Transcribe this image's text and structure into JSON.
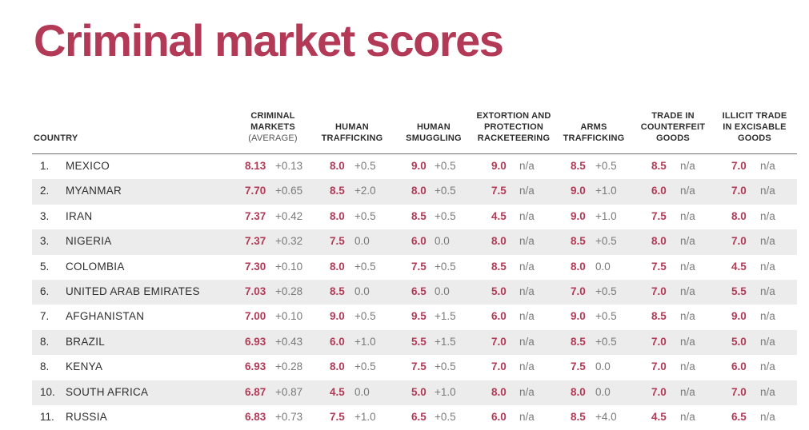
{
  "title": "Criminal market scores",
  "headers": {
    "country": "COUNTRY",
    "criminal_markets": "CRIMINAL MARKETS",
    "criminal_markets_sub": "(AVERAGE)",
    "human_trafficking": "HUMAN TRAFFICKING",
    "human_smuggling": "HUMAN SMUGGLING",
    "extortion": "EXTORTION AND PROTECTION RACKETEERING",
    "arms_trafficking": "ARMS TRAFFICKING",
    "counterfeit": "TRADE IN COUNTERFEIT GOODS",
    "excisable": "ILLICIT TRADE IN EXCISABLE GOODS"
  },
  "rows": [
    {
      "rank": "1.",
      "country": "MEXICO",
      "cm": "8.13",
      "cm_d": "+0.13",
      "ht": "8.0",
      "ht_d": "+0.5",
      "hs": "9.0",
      "hs_d": "+0.5",
      "ex": "9.0",
      "ex_d": "n/a",
      "at": "8.5",
      "at_d": "+0.5",
      "cg": "8.5",
      "cg_d": "n/a",
      "eg": "7.0",
      "eg_d": "n/a"
    },
    {
      "rank": "2.",
      "country": "MYANMAR",
      "cm": "7.70",
      "cm_d": "+0.65",
      "ht": "8.5",
      "ht_d": "+2.0",
      "hs": "8.0",
      "hs_d": "+0.5",
      "ex": "7.5",
      "ex_d": "n/a",
      "at": "9.0",
      "at_d": "+1.0",
      "cg": "6.0",
      "cg_d": "n/a",
      "eg": "7.0",
      "eg_d": "n/a"
    },
    {
      "rank": "3.",
      "country": "IRAN",
      "cm": "7.37",
      "cm_d": "+0.42",
      "ht": "8.0",
      "ht_d": "+0.5",
      "hs": "8.5",
      "hs_d": "+0.5",
      "ex": "4.5",
      "ex_d": "n/a",
      "at": "9.0",
      "at_d": "+1.0",
      "cg": "7.5",
      "cg_d": "n/a",
      "eg": "8.0",
      "eg_d": "n/a"
    },
    {
      "rank": "3.",
      "country": "NIGERIA",
      "cm": "7.37",
      "cm_d": "+0.32",
      "ht": "7.5",
      "ht_d": "0.0",
      "hs": "6.0",
      "hs_d": "0.0",
      "ex": "8.0",
      "ex_d": "n/a",
      "at": "8.5",
      "at_d": "+0.5",
      "cg": "8.0",
      "cg_d": "n/a",
      "eg": "7.0",
      "eg_d": "n/a"
    },
    {
      "rank": "5.",
      "country": "COLOMBIA",
      "cm": "7.30",
      "cm_d": "+0.10",
      "ht": "8.0",
      "ht_d": "+0.5",
      "hs": "7.5",
      "hs_d": "+0.5",
      "ex": "8.5",
      "ex_d": "n/a",
      "at": "8.0",
      "at_d": "0.0",
      "cg": "7.5",
      "cg_d": "n/a",
      "eg": "4.5",
      "eg_d": "n/a"
    },
    {
      "rank": "6.",
      "country": "UNITED ARAB EMIRATES",
      "cm": "7.03",
      "cm_d": "+0.28",
      "ht": "8.5",
      "ht_d": "0.0",
      "hs": "6.5",
      "hs_d": "0.0",
      "ex": "5.0",
      "ex_d": "n/a",
      "at": "7.0",
      "at_d": "+0.5",
      "cg": "7.0",
      "cg_d": "n/a",
      "eg": "5.5",
      "eg_d": "n/a"
    },
    {
      "rank": "7.",
      "country": "AFGHANISTAN",
      "cm": "7.00",
      "cm_d": "+0.10",
      "ht": "9.0",
      "ht_d": "+0.5",
      "hs": "9.5",
      "hs_d": "+1.5",
      "ex": "6.0",
      "ex_d": "n/a",
      "at": "9.0",
      "at_d": "+0.5",
      "cg": "8.5",
      "cg_d": "n/a",
      "eg": "9.0",
      "eg_d": "n/a"
    },
    {
      "rank": "8.",
      "country": "BRAZIL",
      "cm": "6.93",
      "cm_d": "+0.43",
      "ht": "6.0",
      "ht_d": "+1.0",
      "hs": "5.5",
      "hs_d": "+1.5",
      "ex": "7.0",
      "ex_d": "n/a",
      "at": "8.5",
      "at_d": "+0.5",
      "cg": "7.0",
      "cg_d": "n/a",
      "eg": "5.0",
      "eg_d": "n/a"
    },
    {
      "rank": "8.",
      "country": "KENYA",
      "cm": "6.93",
      "cm_d": "+0.28",
      "ht": "8.0",
      "ht_d": "+0.5",
      "hs": "7.5",
      "hs_d": "+0.5",
      "ex": "7.0",
      "ex_d": "n/a",
      "at": "7.5",
      "at_d": "0.0",
      "cg": "7.0",
      "cg_d": "n/a",
      "eg": "6.0",
      "eg_d": "n/a"
    },
    {
      "rank": "10.",
      "country": "SOUTH AFRICA",
      "cm": "6.87",
      "cm_d": "+0.87",
      "ht": "4.5",
      "ht_d": "0.0",
      "hs": "5.0",
      "hs_d": "+1.0",
      "ex": "8.0",
      "ex_d": "n/a",
      "at": "8.0",
      "at_d": "0.0",
      "cg": "7.0",
      "cg_d": "n/a",
      "eg": "7.0",
      "eg_d": "n/a"
    },
    {
      "rank": "11.",
      "country": "RUSSIA",
      "cm": "6.83",
      "cm_d": "+0.73",
      "ht": "7.5",
      "ht_d": "+1.0",
      "hs": "6.5",
      "hs_d": "+0.5",
      "ex": "6.0",
      "ex_d": "n/a",
      "at": "8.5",
      "at_d": "+4.0",
      "cg": "4.5",
      "cg_d": "n/a",
      "eg": "6.5",
      "eg_d": "n/a"
    }
  ]
}
